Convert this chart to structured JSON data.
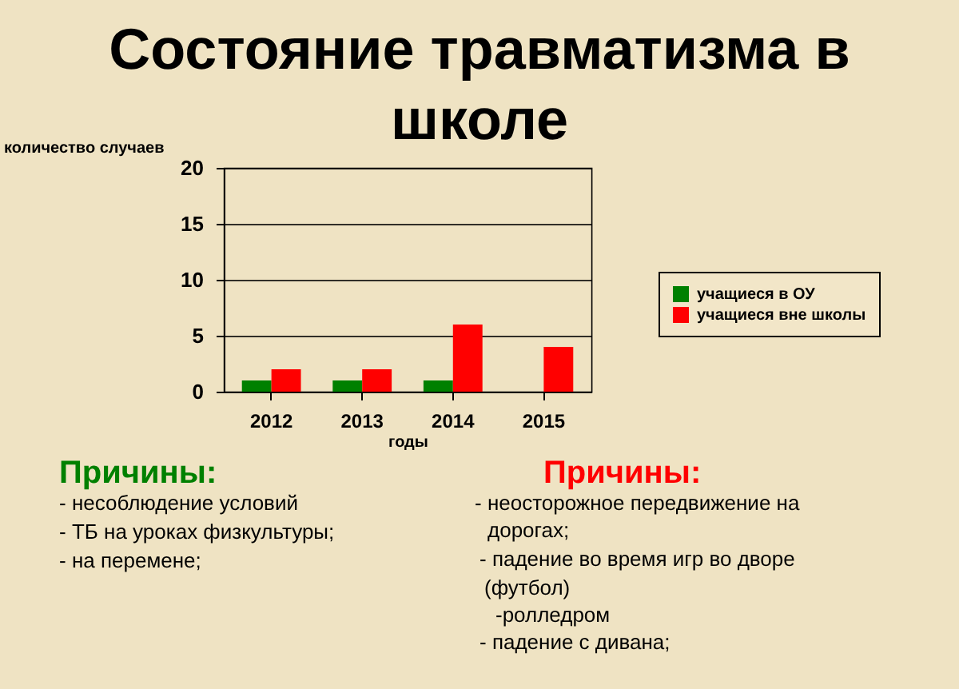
{
  "chart_data": {
    "type": "bar",
    "title": [
      "Состояние травматизма в",
      "школе"
    ],
    "xlabel": "годы",
    "ylabel": "количество случаев",
    "categories": [
      "2012",
      "2013",
      "2014",
      "2015"
    ],
    "series": [
      {
        "name": "учащиеся в ОУ",
        "color": "#008000",
        "values": [
          1,
          1,
          1,
          0
        ]
      },
      {
        "name": "учащиеся вне школы",
        "color": "#ff0000",
        "values": [
          2,
          2,
          6,
          4
        ]
      }
    ],
    "ylim": [
      0,
      20
    ],
    "yticks": [
      0,
      5,
      10,
      15,
      20
    ],
    "grid": "y",
    "legend": "right",
    "annotations": [
      "Причины:",
      "- несоблюдение условий",
      "- ТБ на уроках физкультуры;",
      "- на перемене;",
      "Причины:",
      "- неосторожное передвижение на",
      "дорогах;",
      "- падение во время игр во дворе",
      "(футбол)",
      "-ролледром",
      "- падение с дивана;"
    ]
  }
}
